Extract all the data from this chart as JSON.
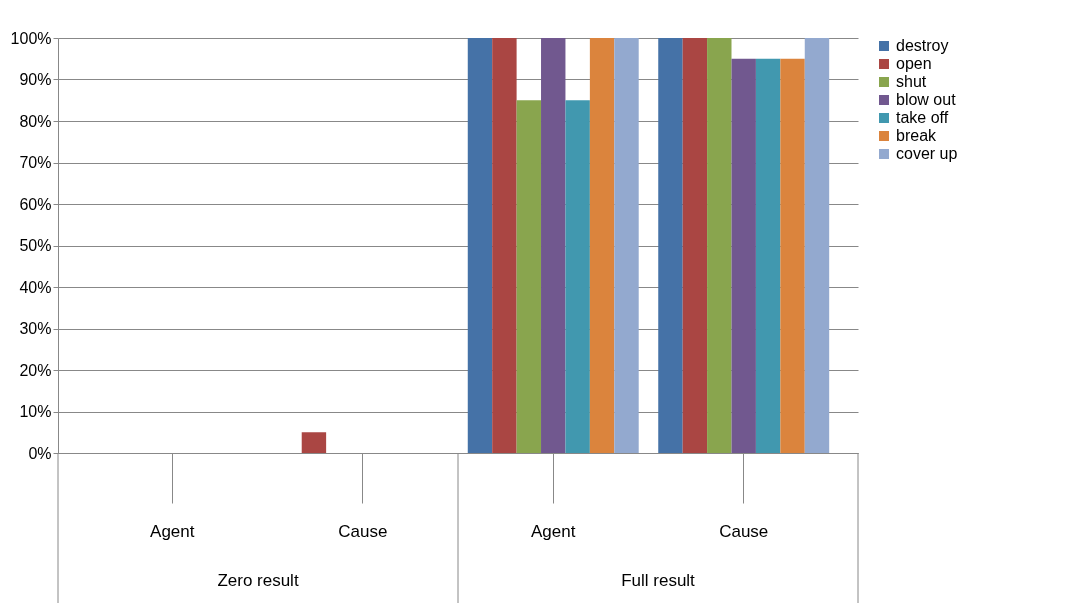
{
  "chart_data": {
    "type": "bar",
    "categories": [
      "Agent",
      "Cause",
      "Agent",
      "Cause"
    ],
    "annotations": [
      "Zero result",
      "Full result"
    ],
    "series": [
      {
        "name": "destroy",
        "color": "#4572a7",
        "values": [
          0,
          0,
          100,
          100
        ]
      },
      {
        "name": "open",
        "color": "#aa4643",
        "values": [
          0,
          5,
          100,
          100
        ]
      },
      {
        "name": "shut",
        "color": "#89a54e",
        "values": [
          0,
          0,
          85,
          100
        ]
      },
      {
        "name": "blow out",
        "color": "#71588f",
        "values": [
          0,
          0,
          100,
          95
        ]
      },
      {
        "name": "take off",
        "color": "#4198af",
        "values": [
          0,
          0,
          85,
          95
        ]
      },
      {
        "name": "break",
        "color": "#db843d",
        "values": [
          0,
          0,
          100,
          95
        ]
      },
      {
        "name": "cover up",
        "color": "#93a9cf",
        "values": [
          0,
          0,
          100,
          100
        ]
      }
    ],
    "ylim": [
      0,
      100
    ],
    "yticks": [
      {
        "value": 0,
        "label": "0%"
      },
      {
        "value": 10,
        "label": "10%"
      },
      {
        "value": 20,
        "label": "20%"
      },
      {
        "value": 30,
        "label": "30%"
      },
      {
        "value": 40,
        "label": "40%"
      },
      {
        "value": 50,
        "label": "50%"
      },
      {
        "value": 60,
        "label": "60%"
      },
      {
        "value": 70,
        "label": "70%"
      },
      {
        "value": 80,
        "label": "80%"
      },
      {
        "value": 90,
        "label": "90%"
      },
      {
        "value": 100,
        "label": "100%"
      }
    ],
    "grid": "y",
    "legend": "right"
  }
}
